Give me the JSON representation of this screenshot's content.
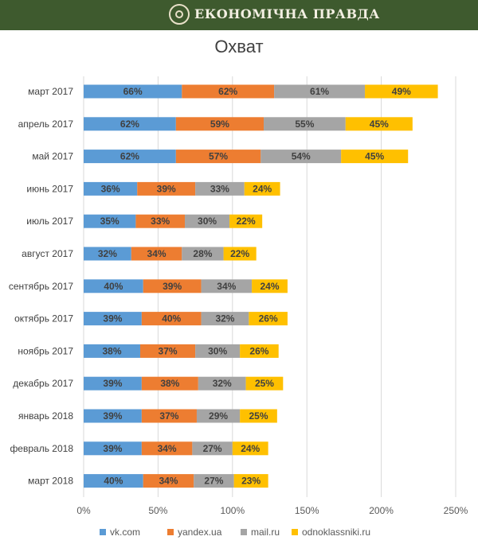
{
  "header": {
    "brand": "ЕКОНОМІЧНА ПРАВДА",
    "logo_icon": "ep-logo-icon"
  },
  "chart_data": {
    "type": "bar",
    "orientation": "horizontal",
    "stacked": true,
    "title": "Охват",
    "categories": [
      "март 2017",
      "апрель 2017",
      "май 2017",
      "июнь 2017",
      "июль 2017",
      "август 2017",
      "сентябрь 2017",
      "октябрь 2017",
      "ноябрь 2017",
      "декабрь 2017",
      "январь 2018",
      "февраль 2018",
      "март 2018"
    ],
    "series": [
      {
        "name": "vk.com",
        "color": "#5b9bd5",
        "values": [
          66,
          62,
          62,
          36,
          35,
          32,
          40,
          39,
          38,
          39,
          39,
          39,
          40
        ],
        "labels": [
          "66%",
          "62%",
          "62%",
          "36%",
          "35%",
          "32%",
          "40%",
          "39%",
          "38%",
          "39%",
          "39%",
          "39%",
          "40%"
        ]
      },
      {
        "name": "yandex.ua",
        "color": "#ed7d31",
        "values": [
          62,
          59,
          57,
          39,
          33,
          34,
          39,
          40,
          37,
          38,
          37,
          34,
          34
        ],
        "labels": [
          "62%",
          "59%",
          "57%",
          "39%",
          "33%",
          "34%",
          "39%",
          "40%",
          "37%",
          "38%",
          "37%",
          "34%",
          "34%"
        ]
      },
      {
        "name": "mail.ru",
        "color": "#a5a5a5",
        "values": [
          61,
          55,
          54,
          33,
          30,
          28,
          34,
          32,
          30,
          32,
          29,
          27,
          27
        ],
        "labels": [
          "61%",
          "55%",
          "54%",
          "33%",
          "30%",
          "28%",
          "34%",
          "32%",
          "30%",
          "32%",
          "29%",
          "27%",
          "27%"
        ]
      },
      {
        "name": "odnoklassniki.ru",
        "color": "#ffc000",
        "values": [
          49,
          45,
          45,
          24,
          22,
          22,
          24,
          26,
          26,
          25,
          25,
          24,
          23
        ],
        "labels": [
          "49%",
          "45%",
          "45%",
          "24%",
          "22%",
          "22%",
          "24%",
          "26%",
          "26%",
          "25%",
          "25%",
          "24%",
          "23%"
        ]
      }
    ],
    "xlim": [
      0,
      250
    ],
    "xticks": [
      0,
      50,
      100,
      150,
      200,
      250
    ],
    "xtick_labels": [
      "0%",
      "50%",
      "100%",
      "150%",
      "200%",
      "250%"
    ],
    "grid": true,
    "legend_position": "bottom"
  }
}
